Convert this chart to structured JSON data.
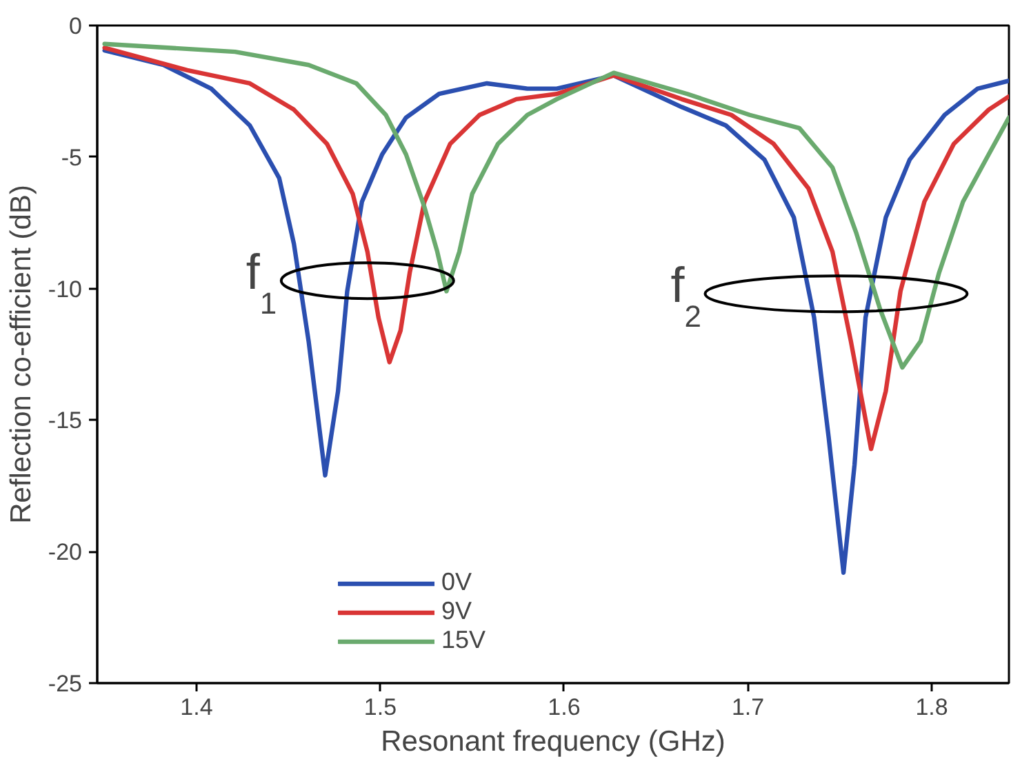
{
  "chart_data": {
    "type": "line",
    "xlabel": "Resonant frequency (GHz)",
    "ylabel": "Reflection co-efficient (dB)",
    "xlim": [
      1.346,
      1.842
    ],
    "ylim": [
      -25,
      0
    ],
    "xticks": [
      1.4,
      1.5,
      1.6,
      1.7,
      1.8
    ],
    "yticks": [
      0,
      -5,
      -10,
      -15,
      -20,
      -25
    ],
    "grid": false,
    "legend": "bottom",
    "marker": "none",
    "line_style": "solid",
    "annotations": [
      {
        "text": "f$_{1}$",
        "x": 1.493,
        "y": -9.7
      },
      {
        "text": "f$_{2}$",
        "x": 1.748,
        "y": -10.2
      }
    ],
    "series": [
      {
        "name": "0V",
        "color": "#2b4fb0",
        "x": [
          1.35,
          1.382,
          1.408,
          1.429,
          1.445,
          1.453,
          1.461,
          1.47,
          1.477,
          1.482,
          1.49,
          1.501,
          1.514,
          1.532,
          1.558,
          1.58,
          1.596,
          1.627,
          1.664,
          1.688,
          1.709,
          1.725,
          1.736,
          1.744,
          1.752,
          1.758,
          1.764,
          1.775,
          1.788,
          1.807,
          1.825,
          1.842
        ],
        "values": [
          -0.95,
          -1.5,
          -2.4,
          -3.8,
          -5.8,
          -8.3,
          -12,
          -17.1,
          -13.9,
          -10.1,
          -6.7,
          -4.9,
          -3.5,
          -2.6,
          -2.2,
          -2.4,
          -2.4,
          -1.9,
          -3.1,
          -3.8,
          -5.1,
          -7.3,
          -11.1,
          -15.7,
          -20.8,
          -16.7,
          -11.1,
          -7.3,
          -5.1,
          -3.4,
          -2.4,
          -2.1
        ]
      },
      {
        "name": "9V",
        "color": "#d93535",
        "x": [
          1.35,
          1.395,
          1.429,
          1.453,
          1.471,
          1.485,
          1.493,
          1.499,
          1.505,
          1.511,
          1.516,
          1.524,
          1.538,
          1.554,
          1.574,
          1.596,
          1.627,
          1.664,
          1.691,
          1.714,
          1.733,
          1.746,
          1.756,
          1.767,
          1.775,
          1.783,
          1.796,
          1.812,
          1.831,
          1.842
        ],
        "values": [
          -0.85,
          -1.7,
          -2.2,
          -3.2,
          -4.5,
          -6.4,
          -8.6,
          -11.1,
          -12.8,
          -11.6,
          -9.4,
          -6.7,
          -4.5,
          -3.4,
          -2.8,
          -2.6,
          -1.9,
          -2.8,
          -3.4,
          -4.5,
          -6.2,
          -8.6,
          -12,
          -16.1,
          -13.9,
          -10.1,
          -6.7,
          -4.5,
          -3.2,
          -2.7
        ]
      },
      {
        "name": "15V",
        "color": "#6aaa6e",
        "x": [
          1.35,
          1.421,
          1.461,
          1.487,
          1.503,
          1.514,
          1.524,
          1.531,
          1.536,
          1.543,
          1.55,
          1.564,
          1.58,
          1.596,
          1.627,
          1.667,
          1.701,
          1.728,
          1.746,
          1.759,
          1.772,
          1.784,
          1.794,
          1.804,
          1.817,
          1.831,
          1.842
        ],
        "values": [
          -0.7,
          -1.0,
          -1.5,
          -2.2,
          -3.4,
          -4.9,
          -6.9,
          -8.6,
          -10.1,
          -8.6,
          -6.4,
          -4.5,
          -3.4,
          -2.8,
          -1.8,
          -2.6,
          -3.4,
          -3.9,
          -5.4,
          -7.9,
          -10.8,
          -13.0,
          -12.0,
          -9.4,
          -6.7,
          -4.9,
          -3.5
        ]
      }
    ]
  }
}
